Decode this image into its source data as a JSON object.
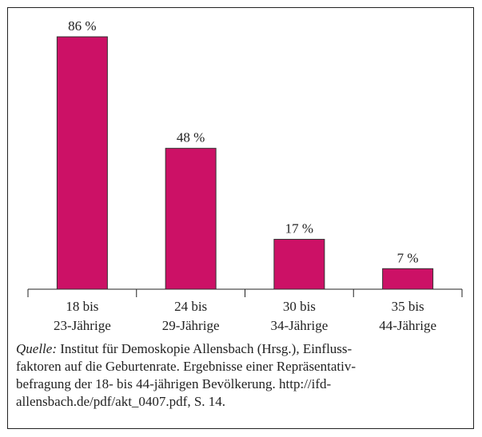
{
  "chart_data": {
    "type": "bar",
    "categories": [
      "18 bis\n23-Jährige",
      "24 bis\n29-Jährige",
      "30 bis\n34-Jährige",
      "35 bis\n44-Jährige"
    ],
    "values": [
      86,
      48,
      17,
      7
    ],
    "value_labels": [
      "86 %",
      "48 %",
      "17 %",
      "7 %"
    ],
    "color": "#cc1166"
  },
  "source": {
    "label": "Quelle:",
    "text": "Institut für Demoskopie Allensbach (Hrsg.), Einfluss-\nfaktoren auf die Geburtenrate. Ergebnisse einer Repräsentativ-\nbefragung der 18- bis 44-jährigen Bevölkerung. http://ifd-\nallensbach.de/pdf/akt_0407.pdf, S. 14."
  }
}
